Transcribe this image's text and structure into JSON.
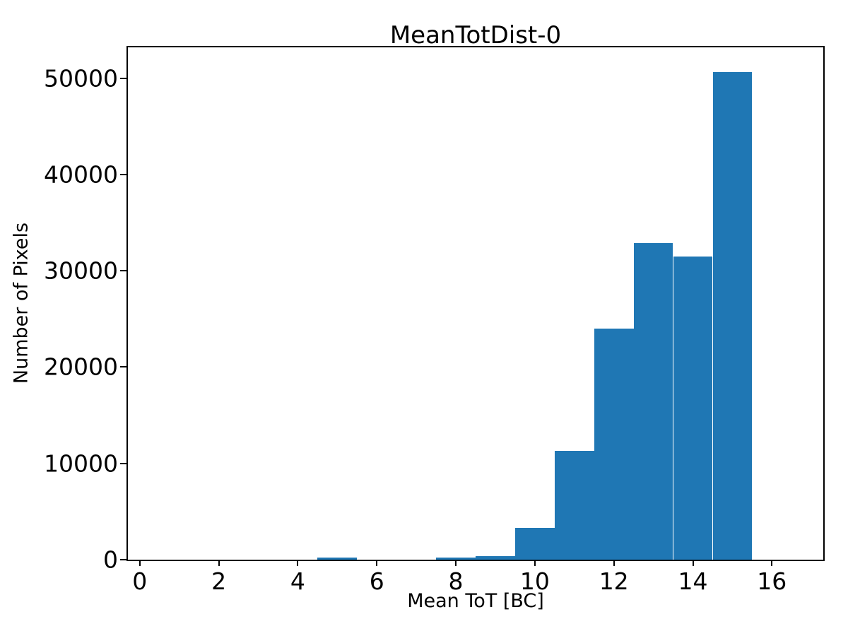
{
  "chart_data": {
    "type": "bar",
    "variant": "histogram",
    "title": "MeanTotDist-0",
    "xlabel": "Mean ToT [BC]",
    "ylabel": "Number of Pixels",
    "bin_edges": [
      0.5,
      1.5,
      2.5,
      3.5,
      4.5,
      5.5,
      6.5,
      7.5,
      8.5,
      9.5,
      10.5,
      11.5,
      12.5,
      13.5,
      14.5,
      15.5,
      16.5
    ],
    "values": [
      0,
      0,
      0,
      0,
      250,
      0,
      0,
      230,
      400,
      3300,
      11300,
      24000,
      32900,
      31500,
      50600,
      0
    ],
    "xlim": [
      -0.3,
      17.3
    ],
    "ylim": [
      0,
      53200
    ],
    "xticks": [
      0,
      2,
      4,
      6,
      8,
      10,
      12,
      14,
      16
    ],
    "yticks": [
      0,
      10000,
      20000,
      30000,
      40000,
      50000
    ],
    "bar_color": "#1f77b4",
    "axis_color": "#000000",
    "background_color": "#ffffff",
    "grid": false,
    "legend": null
  }
}
